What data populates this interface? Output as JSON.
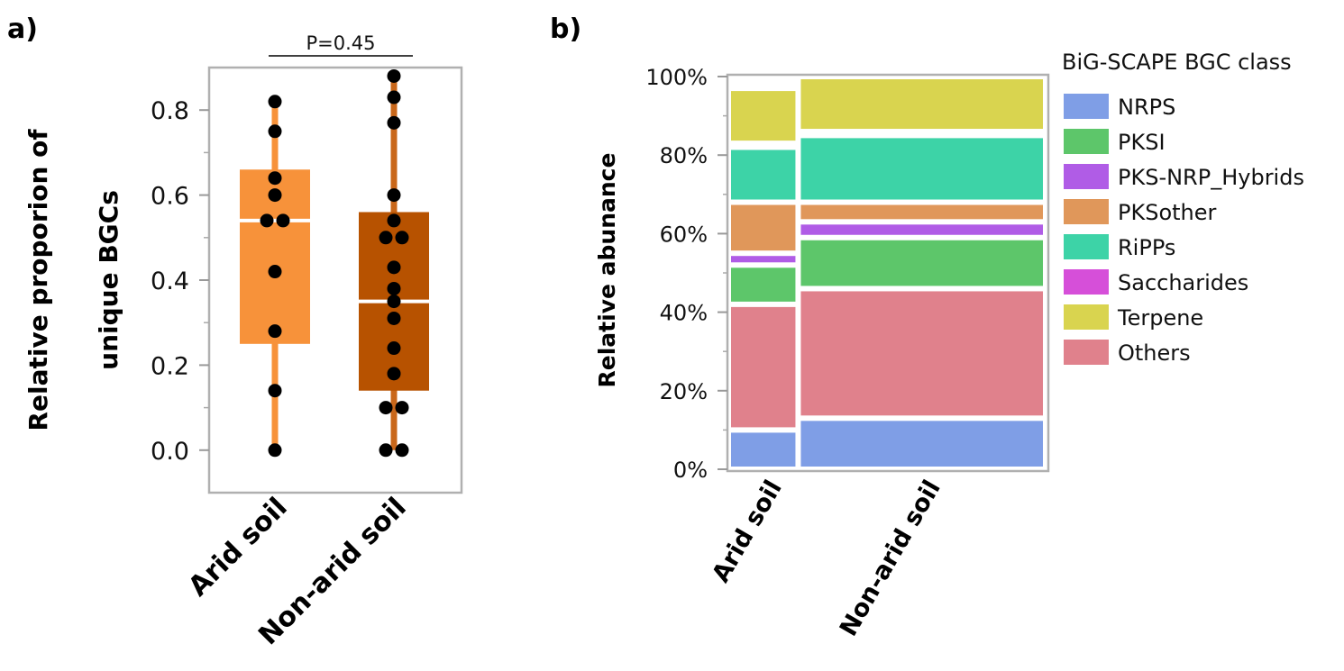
{
  "panels": {
    "a_label": "a)",
    "b_label": "b)"
  },
  "chart_data": [
    {
      "type": "box",
      "panel": "a)",
      "ylabel_line1": "Relative proporion of",
      "ylabel_line2": "unique BGCs",
      "ylim": [
        -0.1,
        0.9
      ],
      "yticks": [
        0.0,
        0.2,
        0.4,
        0.6,
        0.8
      ],
      "ytick_labels": [
        "0.0",
        "0.2",
        "0.4",
        "0.6",
        "0.8"
      ],
      "categories": [
        "Arid soil",
        "Non-arid soil"
      ],
      "annotation": "P=0.45",
      "boxes": [
        {
          "category": "Arid soil",
          "color": "#f7923a",
          "whisker_color": "#f7923a",
          "min": 0.0,
          "q1": 0.25,
          "median": 0.54,
          "q3": 0.66,
          "max": 0.82,
          "points": [
            0.82,
            0.75,
            0.64,
            0.6,
            0.54,
            0.54,
            0.42,
            0.28,
            0.14,
            0.0
          ]
        },
        {
          "category": "Non-arid soil",
          "color": "#b75200",
          "whisker_color": "#c9671a",
          "min": 0.0,
          "q1": 0.14,
          "median": 0.35,
          "q3": 0.56,
          "max": 0.88,
          "points": [
            0.88,
            0.83,
            0.77,
            0.6,
            0.54,
            0.5,
            0.5,
            0.43,
            0.38,
            0.35,
            0.31,
            0.24,
            0.18,
            0.1,
            0.1,
            0.0,
            0.0
          ]
        }
      ]
    },
    {
      "type": "mosaic",
      "panel": "b)",
      "ylabel": "Relative abunance",
      "ylim": [
        0,
        100
      ],
      "yticks": [
        0,
        20,
        40,
        60,
        80,
        100
      ],
      "ytick_labels": [
        "0%",
        "20%",
        "40%",
        "60%",
        "80%",
        "100%"
      ],
      "categories": [
        "Arid soil",
        "Non-arid soil"
      ],
      "category_widths": [
        0.22,
        0.78
      ],
      "legend_title": "BiG-SCAPE BGC class",
      "legend_position": "right",
      "classes": [
        {
          "name": "NRPS",
          "color": "#7f9ee6"
        },
        {
          "name": "PKSI",
          "color": "#5dc66a"
        },
        {
          "name": "PKS-NRP_Hybrids",
          "color": "#b05ce6"
        },
        {
          "name": "PKSother",
          "color": "#e0975a"
        },
        {
          "name": "RiPPs",
          "color": "#3dd3a7"
        },
        {
          "name": "Saccharides",
          "color": "#d64fd9"
        },
        {
          "name": "Terpene",
          "color": "#d9d44f"
        },
        {
          "name": "Others",
          "color": "#e0818c"
        }
      ],
      "series_stack_order": [
        "NRPS",
        "Others",
        "PKSI",
        "PKS-NRP_Hybrids",
        "PKSother",
        "RiPPs",
        "Saccharides",
        "Terpene"
      ],
      "values": {
        "Arid soil": {
          "NRPS": 10,
          "Others": 32,
          "PKSI": 10,
          "PKS-NRP_Hybrids": 3,
          "PKSother": 13,
          "RiPPs": 14,
          "Saccharides": 1,
          "Terpene": 14
        },
        "Non-arid soil": {
          "NRPS": 13,
          "Others": 33,
          "PKSI": 13,
          "PKS-NRP_Hybrids": 4,
          "PKSother": 5,
          "RiPPs": 17,
          "Saccharides": 1,
          "Terpene": 14
        }
      }
    }
  ]
}
